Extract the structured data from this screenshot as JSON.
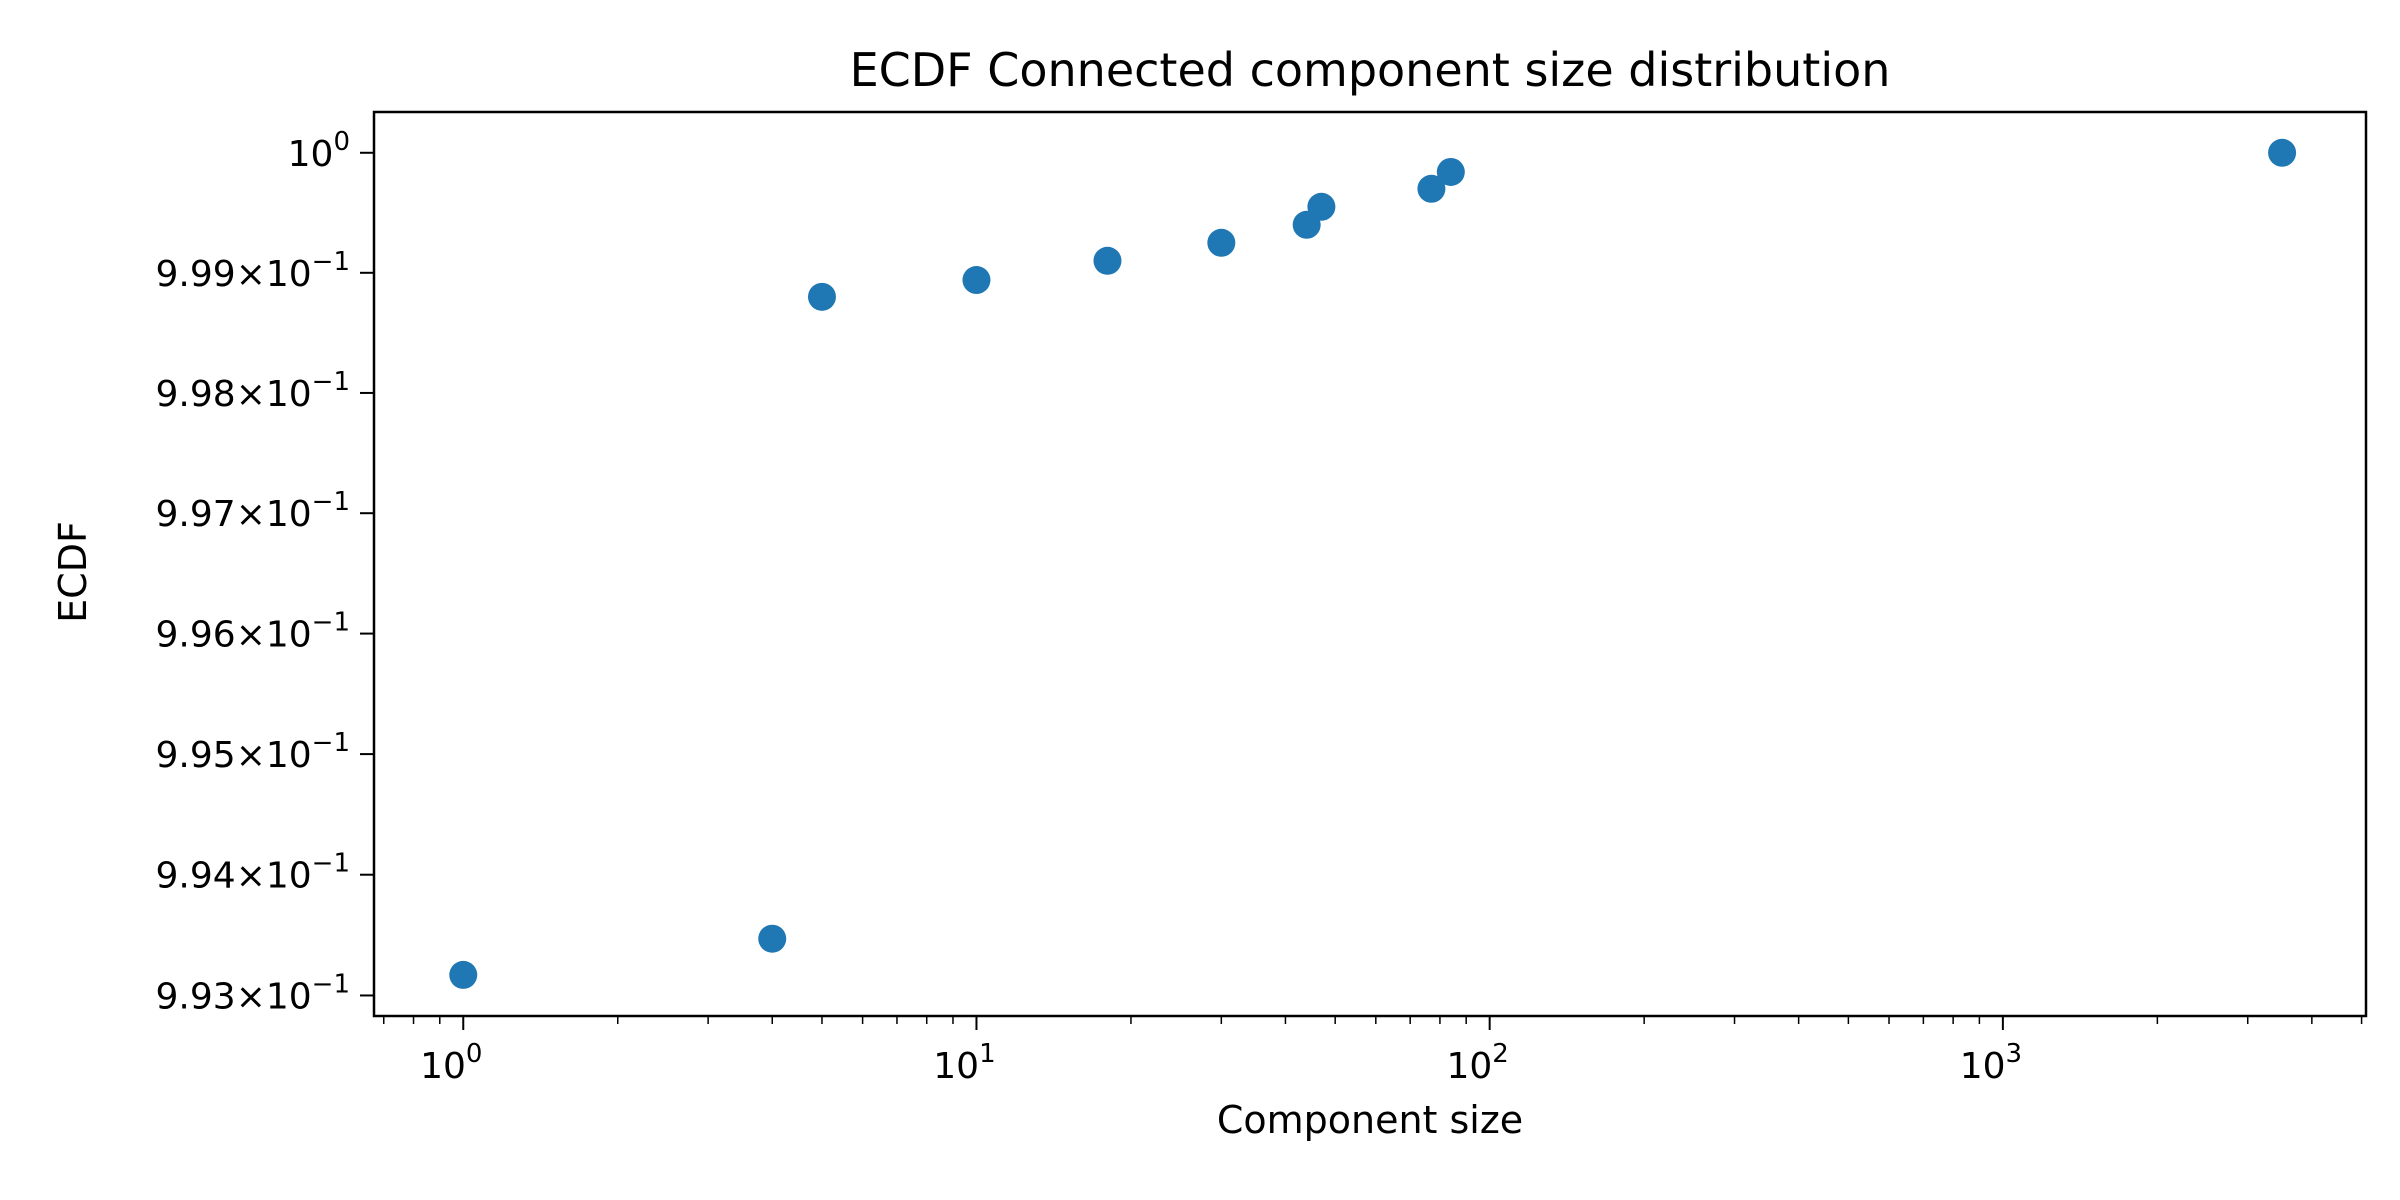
{
  "chart_data": {
    "type": "scatter",
    "title": "ECDF Connected component size distribution",
    "xlabel": "Component size",
    "ylabel": "ECDF",
    "xscale": "log",
    "yscale": "log",
    "xlim": [
      0.67,
      5100
    ],
    "ylim": [
      0.99283,
      1.00034
    ],
    "grid": false,
    "marker_color": "#1f77b4",
    "x_ticks": [
      {
        "value": 1,
        "base": "10",
        "exp": "0"
      },
      {
        "value": 10,
        "base": "10",
        "exp": "1"
      },
      {
        "value": 100,
        "base": "10",
        "exp": "2"
      },
      {
        "value": 1000,
        "base": "10",
        "exp": "3"
      }
    ],
    "y_ticks": [
      {
        "value": 1.0,
        "mant": "",
        "base": "10",
        "exp": "0"
      },
      {
        "value": 0.999,
        "mant": "9.99",
        "base": "10",
        "exp": "−1"
      },
      {
        "value": 0.998,
        "mant": "9.98",
        "base": "10",
        "exp": "−1"
      },
      {
        "value": 0.997,
        "mant": "9.97",
        "base": "10",
        "exp": "−1"
      },
      {
        "value": 0.996,
        "mant": "9.96",
        "base": "10",
        "exp": "−1"
      },
      {
        "value": 0.995,
        "mant": "9.95",
        "base": "10",
        "exp": "−1"
      },
      {
        "value": 0.994,
        "mant": "9.94",
        "base": "10",
        "exp": "−1"
      },
      {
        "value": 0.993,
        "mant": "9.93",
        "base": "10",
        "exp": "−1"
      }
    ],
    "points": [
      {
        "x": 1,
        "y": 0.99317
      },
      {
        "x": 4,
        "y": 0.99347
      },
      {
        "x": 5,
        "y": 0.9988
      },
      {
        "x": 10,
        "y": 0.99894
      },
      {
        "x": 18,
        "y": 0.9991
      },
      {
        "x": 30,
        "y": 0.99925
      },
      {
        "x": 44,
        "y": 0.9994
      },
      {
        "x": 47,
        "y": 0.99955
      },
      {
        "x": 77,
        "y": 0.9997
      },
      {
        "x": 84,
        "y": 0.99984
      },
      {
        "x": 3500,
        "y": 1.0
      }
    ]
  }
}
